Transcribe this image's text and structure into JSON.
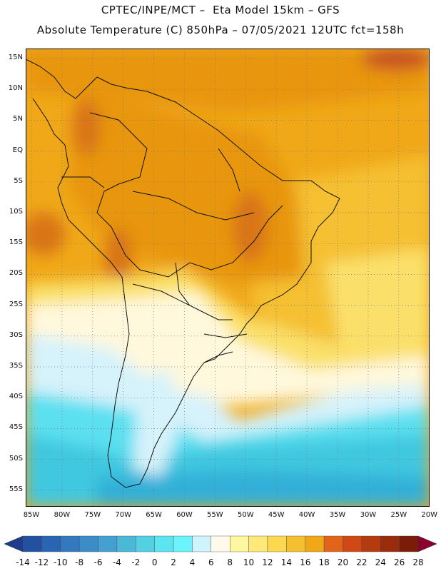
{
  "header": {
    "line1": "CPTEC/INPE/MCT –  Eta Model 15km – GFS",
    "line2": "Absolute Temperature (C) 850hPa – 07/05/2021 12UTC fct=158h"
  },
  "map": {
    "lat_labels": [
      "15N",
      "10N",
      "5N",
      "EQ",
      "5S",
      "10S",
      "15S",
      "20S",
      "25S",
      "30S",
      "35S",
      "40S",
      "45S",
      "50S",
      "55S"
    ],
    "lon_labels": [
      "85W",
      "80W",
      "75W",
      "70W",
      "65W",
      "60W",
      "55W",
      "50W",
      "45W",
      "40W",
      "35W",
      "30W",
      "25W",
      "20W"
    ],
    "grid": "dotted",
    "palette": {
      "hot_orange": "#e8960e",
      "mid_orange": "#f0a818",
      "light_orange": "#f5c030",
      "yellow": "#fae06a",
      "cream": "#fff8dc",
      "pale_cyan": "#d6f2fb",
      "cyan": "#5ce0f0",
      "mid_cyan": "#40c8e0",
      "darker_cyan": "#30b0d8",
      "red_hot": "#c85020"
    }
  },
  "colorbar": {
    "labels": [
      "-14",
      "-12",
      "-10",
      "-8",
      "-6",
      "-4",
      "-2",
      "0",
      "2",
      "4",
      "6",
      "8",
      "10",
      "12",
      "14",
      "16",
      "18",
      "20",
      "22",
      "24",
      "26",
      "28"
    ],
    "colors": [
      "#1e3c8c",
      "#2450a0",
      "#2c64b4",
      "#3478c0",
      "#3c8cc8",
      "#44a0d0",
      "#4cb8d8",
      "#54d0e4",
      "#5ce4f0",
      "#6cf4fc",
      "#d0f4fc",
      "#fffaec",
      "#fff6a0",
      "#fee87a",
      "#fbd850",
      "#f5c030",
      "#f0a818",
      "#e2641a",
      "#d04814",
      "#b43a10",
      "#982c0c",
      "#7a1c08",
      "#8c0030"
    ]
  }
}
